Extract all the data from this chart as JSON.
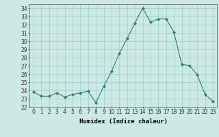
{
  "x": [
    0,
    1,
    2,
    3,
    4,
    5,
    6,
    7,
    8,
    9,
    10,
    11,
    12,
    13,
    14,
    15,
    16,
    17,
    18,
    19,
    20,
    21,
    22,
    23
  ],
  "y": [
    23.8,
    23.3,
    23.3,
    23.7,
    23.2,
    23.5,
    23.7,
    23.9,
    22.5,
    24.5,
    26.3,
    28.5,
    30.3,
    32.2,
    34.0,
    32.3,
    32.7,
    32.7,
    31.1,
    27.2,
    27.0,
    25.9,
    23.5,
    22.7
  ],
  "line_color": "#2e7d6e",
  "marker": "D",
  "marker_size": 2.2,
  "bg_color": "#cce9e5",
  "grid_color": "#9dcfca",
  "xlabel": "Humidex (Indice chaleur)",
  "ylim": [
    22,
    34.5
  ],
  "yticks": [
    22,
    23,
    24,
    25,
    26,
    27,
    28,
    29,
    30,
    31,
    32,
    33,
    34
  ],
  "xlim": [
    -0.5,
    23.5
  ],
  "xticks": [
    0,
    1,
    2,
    3,
    4,
    5,
    6,
    7,
    8,
    9,
    10,
    11,
    12,
    13,
    14,
    15,
    16,
    17,
    18,
    19,
    20,
    21,
    22,
    23
  ],
  "tick_fontsize": 5.5,
  "xlabel_fontsize": 6.5
}
